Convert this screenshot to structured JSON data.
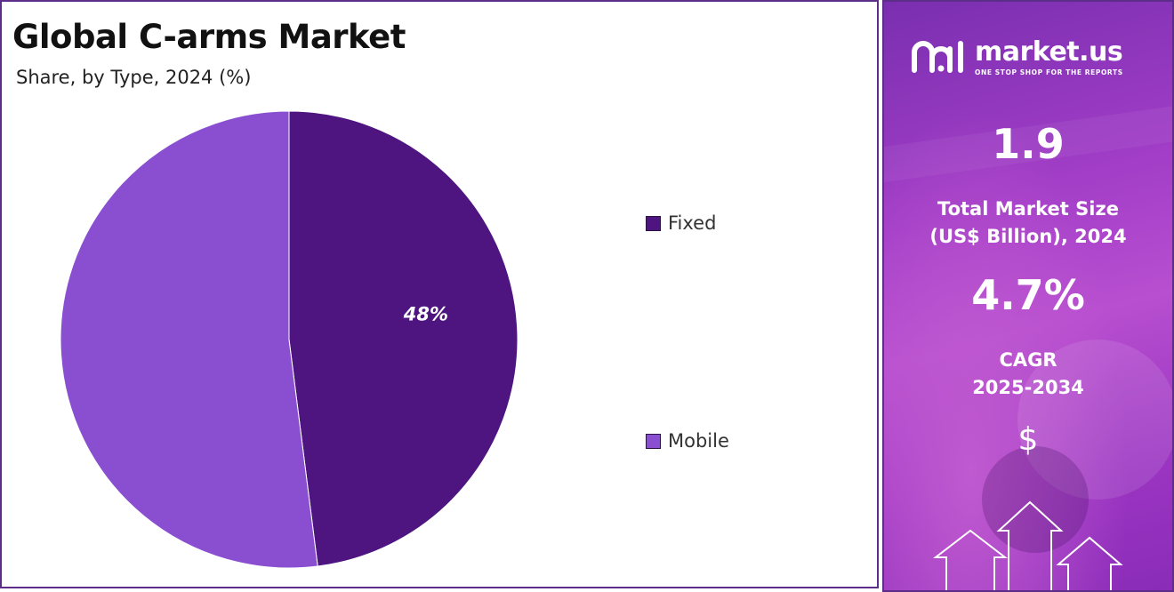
{
  "chart_data": {
    "type": "pie",
    "title": "Global C-arms Market",
    "subtitle": "Share, by Type, 2024 (%)",
    "slices": [
      {
        "name": "Fixed",
        "value": 48,
        "label": "48%",
        "color": "#4e1580"
      },
      {
        "name": "Mobile",
        "value": 52,
        "label": "",
        "color": "#8a4fd0"
      }
    ],
    "legend_position": "right"
  },
  "brand": {
    "name": "market.us",
    "tagline": "ONE STOP SHOP FOR THE REPORTS",
    "icon": "market-us-logo-icon"
  },
  "stats": {
    "market_size_value": "1.9",
    "market_size_label_line1": "Total Market Size",
    "market_size_label_line2": "(US$ Billion), 2024",
    "cagr_value": "4.7%",
    "cagr_label_line1": "CAGR",
    "cagr_label_line2": "2025-2034",
    "currency_symbol": "$"
  },
  "colors": {
    "border": "#5d2d8a",
    "panel_accent": "#a33ec8"
  }
}
